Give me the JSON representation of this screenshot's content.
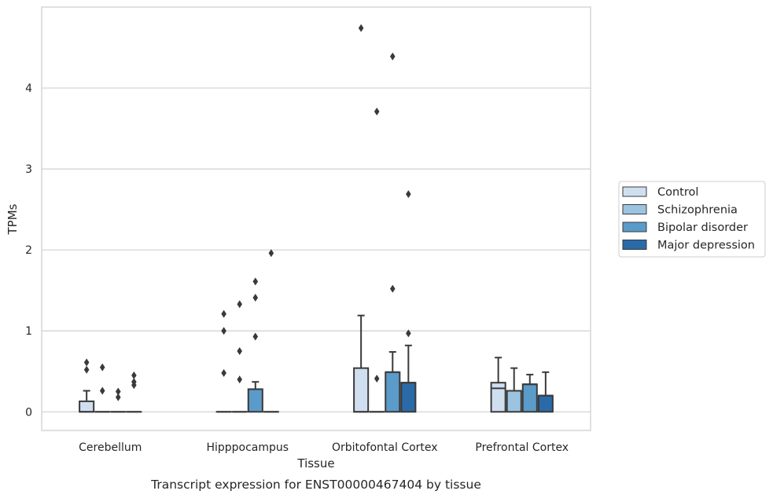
{
  "chart_data": {
    "type": "box",
    "title": "",
    "caption": "Transcript expression for ENST00000467404 by tissue",
    "xlabel": "Tissue",
    "ylabel": "TPMs",
    "ylim": [
      -0.23,
      5.0
    ],
    "yticks": [
      0,
      1,
      2,
      3,
      4
    ],
    "grid": true,
    "legend_position": "right",
    "categories": [
      "Cerebellum",
      "Hipppocampus",
      "Orbitofontal Cortex",
      "Prefrontal Cortex"
    ],
    "series": [
      {
        "name": "Control",
        "color": "#d0dff0",
        "boxes": [
          {
            "q1": 0,
            "median": 0,
            "q3": 0.13,
            "whisker_low": 0,
            "whisker_high": 0.26,
            "outliers": [
              0.61,
              0.52
            ]
          },
          {
            "q1": 0,
            "median": 0,
            "q3": 0,
            "whisker_low": 0,
            "whisker_high": 0,
            "outliers": [
              1.21,
              1.0,
              0.48
            ]
          },
          {
            "q1": 0,
            "median": 0,
            "q3": 0.54,
            "whisker_low": 0,
            "whisker_high": 1.19,
            "outliers": [
              4.74
            ]
          },
          {
            "q1": 0,
            "median": 0.29,
            "q3": 0.36,
            "whisker_low": 0,
            "whisker_high": 0.67,
            "outliers": []
          }
        ]
      },
      {
        "name": "Schizophrenia",
        "color": "#9cc4e0",
        "boxes": [
          {
            "q1": 0,
            "median": 0,
            "q3": 0,
            "whisker_low": 0,
            "whisker_high": 0,
            "outliers": [
              0.55,
              0.26
            ]
          },
          {
            "q1": 0,
            "median": 0,
            "q3": 0,
            "whisker_low": 0,
            "whisker_high": 0,
            "outliers": [
              1.33,
              0.75,
              0.4
            ]
          },
          {
            "q1": 0,
            "median": 0,
            "q3": 0,
            "whisker_low": 0,
            "whisker_high": 0,
            "outliers": [
              3.71,
              0.41
            ]
          },
          {
            "q1": 0,
            "median": 0.26,
            "q3": 0.26,
            "whisker_low": 0,
            "whisker_high": 0.54,
            "outliers": []
          }
        ]
      },
      {
        "name": "Bipolar disorder",
        "color": "#5a9bc9",
        "boxes": [
          {
            "q1": 0,
            "median": 0,
            "q3": 0,
            "whisker_low": 0,
            "whisker_high": 0,
            "outliers": [
              0.25,
              0.18
            ]
          },
          {
            "q1": 0,
            "median": 0.28,
            "q3": 0.28,
            "whisker_low": 0,
            "whisker_high": 0.37,
            "outliers": [
              1.61,
              1.41,
              0.93
            ]
          },
          {
            "q1": 0,
            "median": 0.49,
            "q3": 0.49,
            "whisker_low": 0,
            "whisker_high": 0.74,
            "outliers": [
              4.39,
              1.52
            ]
          },
          {
            "q1": 0,
            "median": 0.34,
            "q3": 0.34,
            "whisker_low": 0,
            "whisker_high": 0.46,
            "outliers": []
          }
        ]
      },
      {
        "name": "Major depression",
        "color": "#2a6aa8",
        "boxes": [
          {
            "q1": 0,
            "median": 0,
            "q3": 0,
            "whisker_low": 0,
            "whisker_high": 0,
            "outliers": [
              0.45,
              0.37,
              0.33
            ]
          },
          {
            "q1": 0,
            "median": 0,
            "q3": 0,
            "whisker_low": 0,
            "whisker_high": 0,
            "outliers": [
              1.96
            ]
          },
          {
            "q1": 0,
            "median": 0.36,
            "q3": 0.36,
            "whisker_low": 0,
            "whisker_high": 0.82,
            "outliers": [
              2.69,
              0.97
            ]
          },
          {
            "q1": 0,
            "median": 0.2,
            "q3": 0.2,
            "whisker_low": 0,
            "whisker_high": 0.49,
            "outliers": []
          }
        ]
      }
    ]
  }
}
